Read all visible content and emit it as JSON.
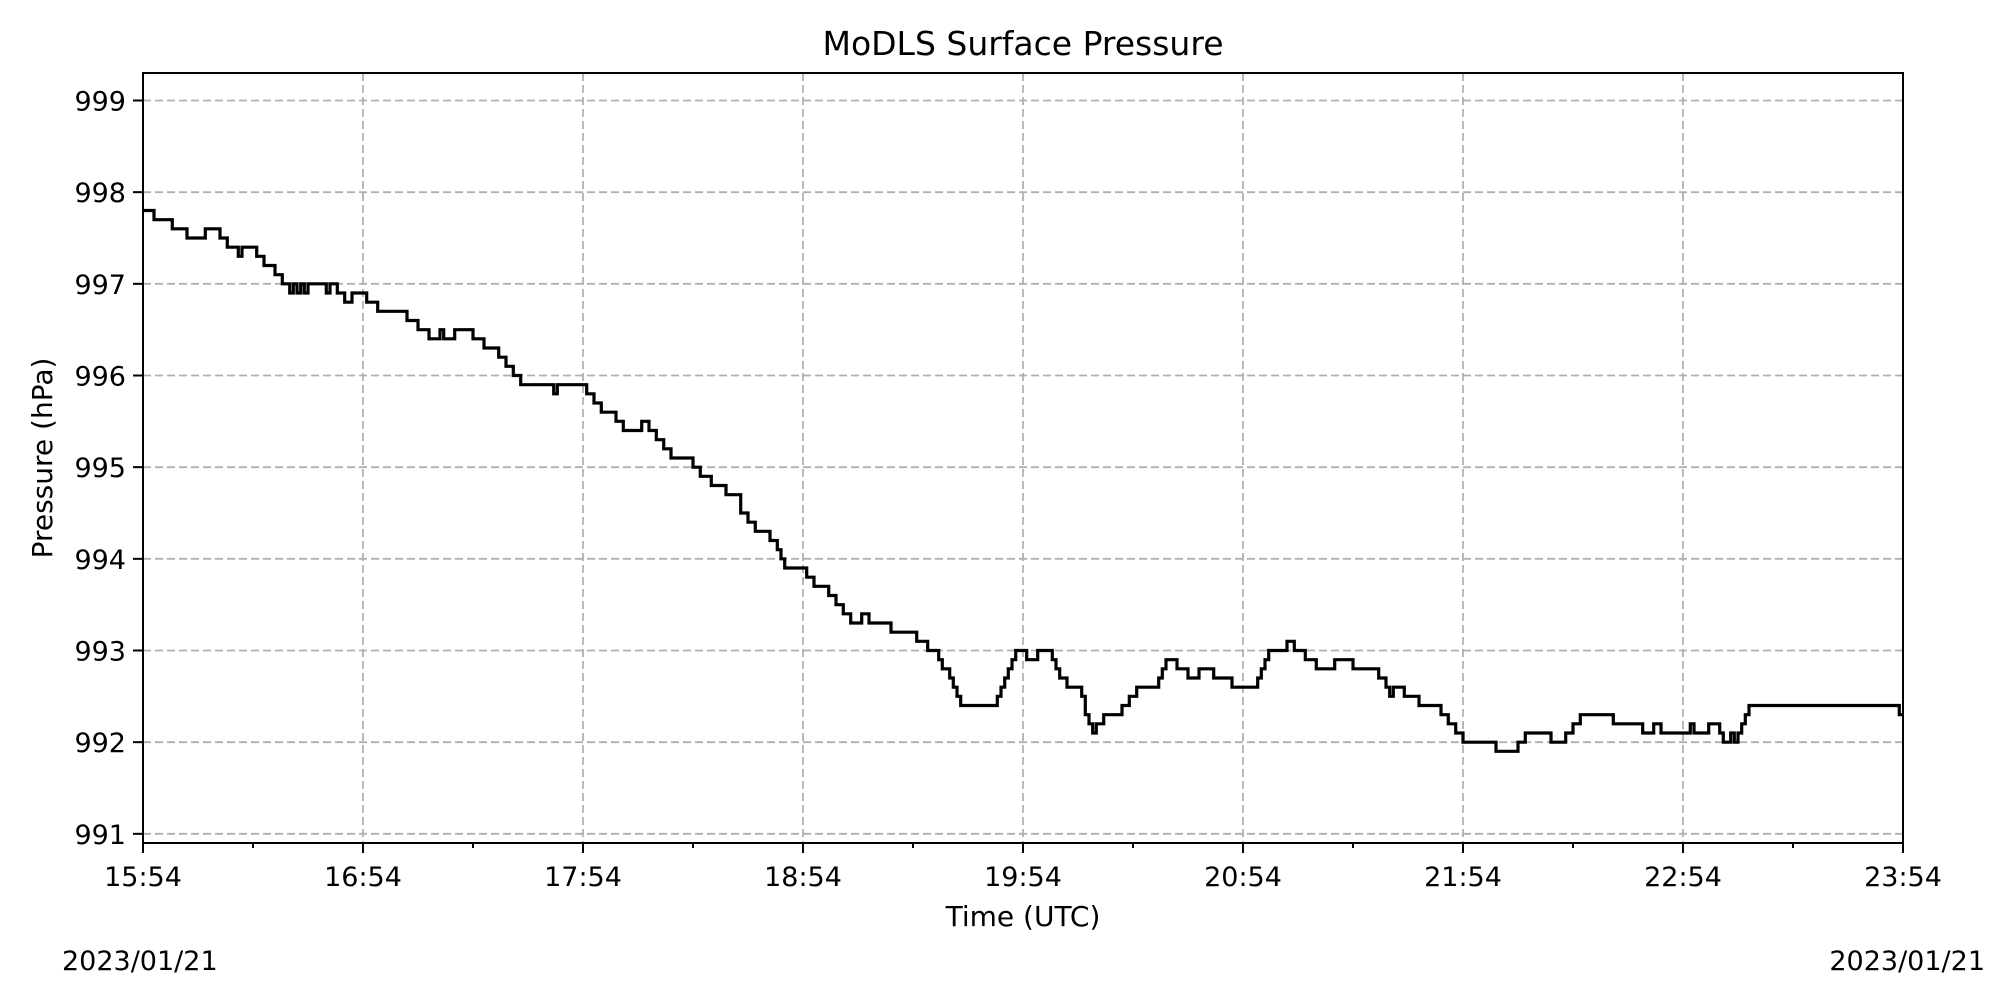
{
  "chart_data": {
    "type": "line",
    "title": "MoDLS Surface Pressure",
    "xlabel": "Time (UTC)",
    "ylabel": "Pressure (hPa)",
    "date_left": "2023/01/21",
    "date_right": "2023/01/21",
    "x_unit": "time (UTC)",
    "xlim": [
      "15:54",
      "23:54"
    ],
    "ylim": [
      990.9,
      999.3
    ],
    "x_ticks": [
      "15:54",
      "16:54",
      "17:54",
      "18:54",
      "19:54",
      "20:54",
      "21:54",
      "22:54",
      "23:54"
    ],
    "x_minor_ticks": [
      "16:24",
      "17:24",
      "18:24",
      "19:24",
      "20:24",
      "21:24",
      "22:24",
      "23:24"
    ],
    "y_ticks": [
      991,
      992,
      993,
      994,
      995,
      996,
      997,
      998,
      999
    ],
    "y_tick_labels": [
      "991",
      "992",
      "993",
      "994",
      "995",
      "996",
      "997",
      "998",
      "999"
    ],
    "grid": true,
    "line_color": "#000000",
    "grid_color": "#b0b0b0",
    "series": [
      {
        "values": [
          [
            "15:54",
            997.8
          ],
          [
            "15:57",
            997.7
          ],
          [
            "16:02",
            997.6
          ],
          [
            "16:06",
            997.5
          ],
          [
            "16:11",
            997.6
          ],
          [
            "16:15",
            997.5
          ],
          [
            "16:17",
            997.4
          ],
          [
            "16:20",
            997.3
          ],
          [
            "16:21",
            997.4
          ],
          [
            "16:25",
            997.3
          ],
          [
            "16:27",
            997.2
          ],
          [
            "16:30",
            997.1
          ],
          [
            "16:32",
            997.0
          ],
          [
            "16:34",
            996.9
          ],
          [
            "16:35",
            997.0
          ],
          [
            "16:36",
            996.9
          ],
          [
            "16:37",
            997.0
          ],
          [
            "16:38",
            996.9
          ],
          [
            "16:39",
            997.0
          ],
          [
            "16:44",
            996.9
          ],
          [
            "16:45",
            997.0
          ],
          [
            "16:47",
            996.9
          ],
          [
            "16:49",
            996.8
          ],
          [
            "16:51",
            996.9
          ],
          [
            "16:55",
            996.8
          ],
          [
            "16:58",
            996.7
          ],
          [
            "17:06",
            996.6
          ],
          [
            "17:09",
            996.5
          ],
          [
            "17:12",
            996.4
          ],
          [
            "17:15",
            996.5
          ],
          [
            "17:16",
            996.4
          ],
          [
            "17:19",
            996.5
          ],
          [
            "17:24",
            996.4
          ],
          [
            "17:27",
            996.3
          ],
          [
            "17:31",
            996.2
          ],
          [
            "17:33",
            996.1
          ],
          [
            "17:35",
            996.0
          ],
          [
            "17:37",
            995.9
          ],
          [
            "17:46",
            995.8
          ],
          [
            "17:47",
            995.9
          ],
          [
            "17:55",
            995.8
          ],
          [
            "17:57",
            995.7
          ],
          [
            "17:59",
            995.6
          ],
          [
            "18:03",
            995.5
          ],
          [
            "18:05",
            995.4
          ],
          [
            "18:10",
            995.5
          ],
          [
            "18:12",
            995.4
          ],
          [
            "18:14",
            995.3
          ],
          [
            "18:16",
            995.2
          ],
          [
            "18:18",
            995.1
          ],
          [
            "18:24",
            995.0
          ],
          [
            "18:26",
            994.9
          ],
          [
            "18:29",
            994.8
          ],
          [
            "18:33",
            994.7
          ],
          [
            "18:37",
            994.5
          ],
          [
            "18:39",
            994.4
          ],
          [
            "18:41",
            994.3
          ],
          [
            "18:45",
            994.2
          ],
          [
            "18:47",
            994.1
          ],
          [
            "18:48",
            994.0
          ],
          [
            "18:49",
            993.9
          ],
          [
            "18:55",
            993.8
          ],
          [
            "18:57",
            993.7
          ],
          [
            "19:01",
            993.6
          ],
          [
            "19:03",
            993.5
          ],
          [
            "19:05",
            993.4
          ],
          [
            "19:07",
            993.3
          ],
          [
            "19:10",
            993.4
          ],
          [
            "19:12",
            993.3
          ],
          [
            "19:18",
            993.2
          ],
          [
            "19:25",
            993.1
          ],
          [
            "19:28",
            993.0
          ],
          [
            "19:31",
            992.9
          ],
          [
            "19:32",
            992.8
          ],
          [
            "19:34",
            992.7
          ],
          [
            "19:35",
            992.6
          ],
          [
            "19:36",
            992.5
          ],
          [
            "19:37",
            992.4
          ],
          [
            "19:47",
            992.5
          ],
          [
            "19:48",
            992.6
          ],
          [
            "19:49",
            992.7
          ],
          [
            "19:50",
            992.8
          ],
          [
            "19:51",
            992.9
          ],
          [
            "19:52",
            993.0
          ],
          [
            "19:55",
            992.9
          ],
          [
            "19:58",
            993.0
          ],
          [
            "20:02",
            992.9
          ],
          [
            "20:03",
            992.8
          ],
          [
            "20:04",
            992.7
          ],
          [
            "20:06",
            992.6
          ],
          [
            "20:10",
            992.5
          ],
          [
            "20:11",
            992.3
          ],
          [
            "20:12",
            992.2
          ],
          [
            "20:13",
            992.1
          ],
          [
            "20:14",
            992.2
          ],
          [
            "20:16",
            992.3
          ],
          [
            "20:21",
            992.4
          ],
          [
            "20:23",
            992.5
          ],
          [
            "20:25",
            992.6
          ],
          [
            "20:31",
            992.7
          ],
          [
            "20:32",
            992.8
          ],
          [
            "20:33",
            992.9
          ],
          [
            "20:36",
            992.8
          ],
          [
            "20:39",
            992.7
          ],
          [
            "20:42",
            992.8
          ],
          [
            "20:46",
            992.7
          ],
          [
            "20:51",
            992.6
          ],
          [
            "20:58",
            992.7
          ],
          [
            "20:59",
            992.8
          ],
          [
            "21:00",
            992.9
          ],
          [
            "21:01",
            993.0
          ],
          [
            "21:06",
            993.1
          ],
          [
            "21:08",
            993.0
          ],
          [
            "21:11",
            992.9
          ],
          [
            "21:14",
            992.8
          ],
          [
            "21:19",
            992.9
          ],
          [
            "21:24",
            992.8
          ],
          [
            "21:31",
            992.7
          ],
          [
            "21:33",
            992.6
          ],
          [
            "21:34",
            992.5
          ],
          [
            "21:35",
            992.6
          ],
          [
            "21:38",
            992.5
          ],
          [
            "21:42",
            992.4
          ],
          [
            "21:48",
            992.3
          ],
          [
            "21:50",
            992.2
          ],
          [
            "21:52",
            992.1
          ],
          [
            "21:54",
            992.0
          ],
          [
            "22:03",
            991.9
          ],
          [
            "22:09",
            992.0
          ],
          [
            "22:11",
            992.1
          ],
          [
            "22:18",
            992.0
          ],
          [
            "22:22",
            992.1
          ],
          [
            "22:24",
            992.2
          ],
          [
            "22:26",
            992.3
          ],
          [
            "22:35",
            992.2
          ],
          [
            "22:43",
            992.1
          ],
          [
            "22:46",
            992.2
          ],
          [
            "22:48",
            992.1
          ],
          [
            "22:56",
            992.2
          ],
          [
            "22:57",
            992.1
          ],
          [
            "23:01",
            992.2
          ],
          [
            "23:04",
            992.1
          ],
          [
            "23:05",
            992.0
          ],
          [
            "23:07",
            992.1
          ],
          [
            "23:08",
            992.0
          ],
          [
            "23:09",
            992.1
          ],
          [
            "23:10",
            992.2
          ],
          [
            "23:11",
            992.3
          ],
          [
            "23:12",
            992.4
          ],
          [
            "23:53",
            992.3
          ],
          [
            "23:54",
            992.3
          ]
        ]
      }
    ]
  }
}
